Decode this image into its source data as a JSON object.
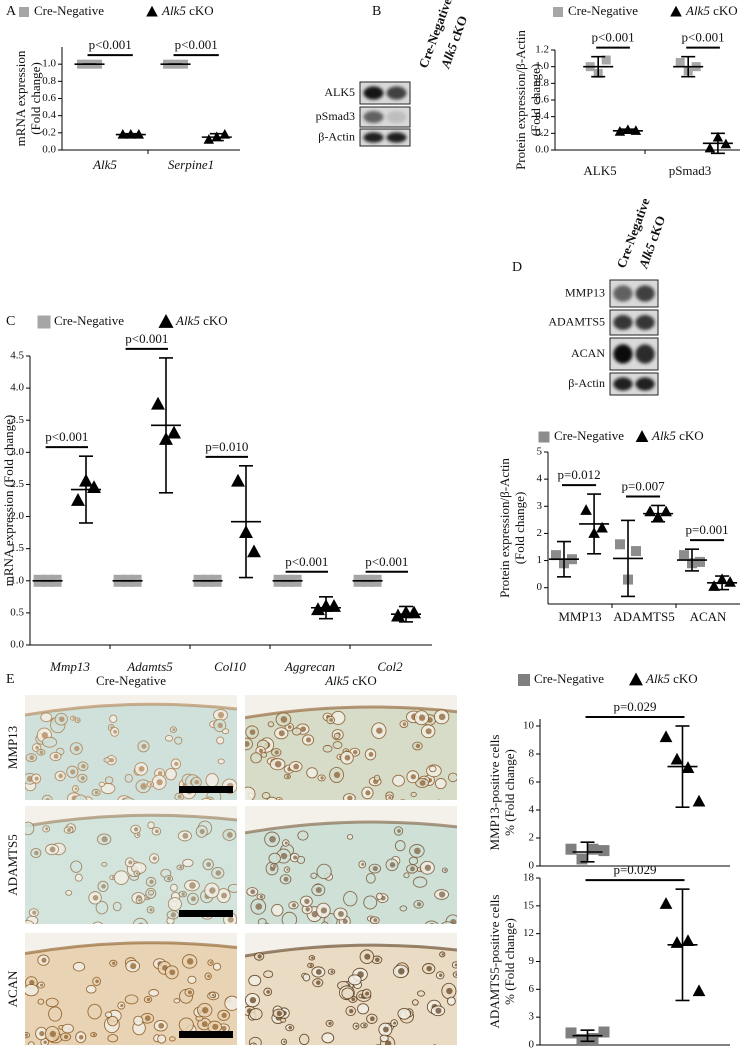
{
  "panel_labels": [
    "A",
    "B",
    "C",
    "D",
    "E"
  ],
  "blots": [
    {
      "columns": [
        "Cre-Negative",
        "Alk5 cKO"
      ],
      "rows": [
        "ALK5",
        "pSmad3",
        "β-Actin"
      ]
    },
    {
      "columns": [
        "Cre-Negative",
        "Alk5 cKO"
      ],
      "rows": [
        "MMP13",
        "ADAMTS5",
        "ACAN",
        "β-Actin"
      ]
    }
  ],
  "histology": {
    "columns": [
      "Cre-Negative",
      "Alk5 cKO"
    ],
    "rows": [
      "MMP13",
      "ADAMTS5",
      "ACAN"
    ]
  },
  "chart_data": [
    {
      "type": "dot",
      "legend": true,
      "y_label": [
        "mRNA expression",
        "(Fold change)"
      ],
      "categories": [
        "Alk5",
        "Serpine1"
      ],
      "category_style": "italic",
      "series": [
        {
          "name": "Cre-Negative",
          "color": "#a6a6a6",
          "marker": "square",
          "values": [
            1,
            1
          ],
          "errors": [
            0,
            0
          ],
          "points": [
            [
              1,
              1,
              1
            ],
            [
              1,
              1,
              1
            ]
          ]
        },
        {
          "name": "Alk5 cKO",
          "color": "#000000",
          "marker": "triangle",
          "values": [
            0.18,
            0.15
          ],
          "errors": [
            0.01,
            0.04
          ],
          "points": [
            [
              0.18,
              0.18,
              0.18
            ],
            [
              0.12,
              0.15,
              0.18
            ]
          ]
        }
      ],
      "annotations": [
        "p<0.001",
        "p<0.001"
      ],
      "ylim": [
        0,
        1.2
      ],
      "yticks": [
        {
          "value": 0,
          "label": "0.0"
        },
        0.2,
        0.4,
        0.6,
        0.8,
        {
          "value": 1,
          "label": "1.0"
        }
      ]
    },
    {
      "type": "dot",
      "legend": true,
      "y_label": [
        "Protein expression/β-Actin",
        "(Fold change)"
      ],
      "categories": [
        "ALK5",
        "pSmad3"
      ],
      "category_style": "normal",
      "series": [
        {
          "name": "Cre-Negative",
          "color": "#a6a6a6",
          "marker": "square",
          "values": [
            1,
            1
          ],
          "errors": [
            0.12,
            0.12
          ],
          "points": [
            [
              1,
              0.92,
              1.08
            ],
            [
              1.05,
              0.95,
              1
            ]
          ]
        },
        {
          "name": "Alk5 cKO",
          "color": "#000000",
          "marker": "triangle",
          "values": [
            0.23,
            0.08
          ],
          "errors": [
            0.02,
            0.12
          ],
          "points": [
            [
              0.22,
              0.24,
              0.23
            ],
            [
              0.02,
              0.15,
              0.07
            ]
          ]
        }
      ],
      "annotations": [
        "p<0.001",
        "p<0.001"
      ],
      "ylim": [
        0,
        1.2
      ],
      "yticks": [
        {
          "value": 0,
          "label": "0.0"
        },
        0.2,
        0.4,
        0.6,
        0.8,
        {
          "value": 1,
          "label": "1.0"
        },
        1.2
      ]
    },
    {
      "type": "dot",
      "legend": true,
      "y_label": [
        "mRNA expression (Fold change)"
      ],
      "categories": [
        "Mmp13",
        "Adamts5",
        "Col10",
        "Aggrecan",
        "Col2"
      ],
      "category_style": "italic",
      "series": [
        {
          "name": "Cre-Negative",
          "color": "#a6a6a6",
          "marker": "square",
          "values": [
            1,
            1,
            1,
            1,
            1
          ],
          "errors": [
            0,
            0,
            0,
            0,
            0
          ],
          "points": [
            [
              1,
              1,
              1
            ],
            [
              1,
              1,
              1
            ],
            [
              1,
              1,
              1
            ],
            [
              1,
              1,
              1
            ],
            [
              1,
              1,
              1
            ]
          ]
        },
        {
          "name": "Alk5 cKO",
          "color": "#000000",
          "marker": "triangle",
          "values": [
            2.42,
            3.42,
            1.92,
            0.58,
            0.48
          ],
          "errors": [
            0.52,
            1.05,
            0.87,
            0.17,
            0.12
          ],
          "points": [
            [
              2.25,
              2.55,
              2.45
            ],
            [
              3.75,
              3.2,
              3.3
            ],
            [
              2.55,
              1.75,
              1.45
            ],
            [
              0.55,
              0.6,
              0.6
            ],
            [
              0.45,
              0.5,
              0.5
            ]
          ]
        }
      ],
      "annotations": [
        "p<0.001",
        "p<0.001",
        "p=0.010",
        "p<0.001",
        "p<0.001"
      ],
      "ylim": [
        0,
        4.5
      ],
      "yticks": [
        {
          "value": 0,
          "label": "0.0"
        },
        0.5,
        {
          "value": 1,
          "label": "1.0"
        },
        1.5,
        {
          "value": 2,
          "label": "2.0"
        },
        2.5,
        {
          "value": 3,
          "label": "3.0"
        },
        3.5,
        {
          "value": 4,
          "label": "4.0"
        },
        4.5
      ]
    },
    {
      "type": "dot",
      "legend": true,
      "y_label": [
        "Protein expression/β-Actin",
        "(Fold change)"
      ],
      "categories": [
        "MMP13",
        "ADAMTS5",
        "ACAN"
      ],
      "category_style": "normal",
      "series": [
        {
          "name": "Cre-Negative",
          "color": "#8c8c8c",
          "marker": "square",
          "values": [
            1.05,
            1.08,
            1.02
          ],
          "errors": [
            0.65,
            1.4,
            0.4
          ],
          "points": [
            [
              1.2,
              0.9,
              1.05
            ],
            [
              1.6,
              0.3,
              1.35
            ],
            [
              1.2,
              0.9,
              0.95
            ]
          ]
        },
        {
          "name": "Alk5 cKO",
          "color": "#000000",
          "marker": "triangle",
          "values": [
            2.35,
            2.73,
            0.18
          ],
          "errors": [
            1.1,
            0.3,
            0.25
          ],
          "points": [
            [
              2.85,
              2,
              2.2
            ],
            [
              2.8,
              2.6,
              2.8
            ],
            [
              0.05,
              0.3,
              0.2
            ]
          ]
        }
      ],
      "annotations": [
        "p=0.012",
        "p=0.007",
        "p=0.001"
      ],
      "ylim": [
        -0.6,
        5
      ],
      "yticks": [
        0,
        1,
        2,
        3,
        4,
        5
      ]
    },
    {
      "type": "dot",
      "legend": true,
      "y_label": [
        "MMP13-positive cells",
        "% (Fold change)"
      ],
      "categories": [
        null
      ],
      "category_style": "normal",
      "series": [
        {
          "name": "Cre-Negative",
          "color": "#7f7f7f",
          "marker": "square",
          "values": [
            1
          ],
          "errors": [
            0.7
          ],
          "points": [
            [
              1.2,
              0.5,
              1.2,
              1.1
            ]
          ]
        },
        {
          "name": "Alk5 cKO",
          "color": "#000000",
          "marker": "triangle",
          "values": [
            7.1
          ],
          "errors": [
            2.9
          ],
          "points": [
            [
              9.2,
              7.6,
              7,
              4.6
            ]
          ]
        }
      ],
      "annotations": [
        "p=0.029"
      ],
      "ylim": [
        0,
        10.5
      ],
      "yticks": [
        0,
        2,
        4,
        6,
        8,
        10
      ]
    },
    {
      "type": "dot",
      "legend": false,
      "y_label": [
        "ADAMTS5-positive cells",
        "% (Fold change)"
      ],
      "categories": [
        null
      ],
      "category_style": "normal",
      "series": [
        {
          "name": "Cre-Negative",
          "color": "#7f7f7f",
          "marker": "square",
          "values": [
            1
          ],
          "errors": [
            0.6
          ],
          "points": [
            [
              1.3,
              0.6,
              0.7,
              1.4
            ]
          ]
        },
        {
          "name": "Alk5 cKO",
          "color": "#000000",
          "marker": "triangle",
          "values": [
            10.8
          ],
          "errors": [
            6
          ],
          "points": [
            [
              15.2,
              11,
              11.2,
              5.8
            ]
          ]
        }
      ],
      "annotations": [
        "p=0.029"
      ],
      "ylim": [
        0,
        18
      ],
      "yticks": [
        0,
        3,
        6,
        9,
        12,
        15,
        18
      ]
    }
  ]
}
